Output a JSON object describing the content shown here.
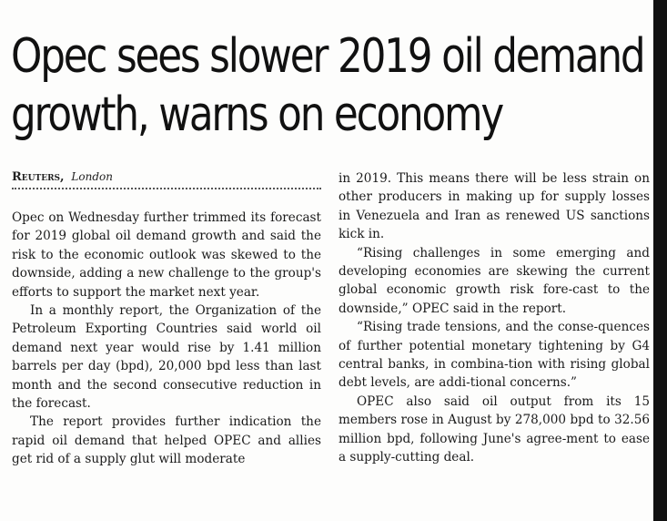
{
  "article": {
    "headline_line1": "Opec sees slower 2019 oil demand",
    "headline_line2": "growth, warns on economy",
    "agency": "Reuters,",
    "location": "London",
    "left_paragraphs": [
      "Opec on Wednesday further trimmed its forecast for 2019 global oil demand growth and said the risk to the economic outlook was skewed to the downside, adding a new challenge to the group's efforts to support the market next year.",
      "In a monthly report, the Organization of the Petroleum Exporting Countries said world oil demand next year would rise by 1.41 million barrels per day (bpd), 20,000 bpd less than last month and the second consecutive reduction in the forecast.",
      "The report provides further indication the rapid oil demand that helped OPEC and allies get rid of a supply glut will moderate"
    ],
    "right_paragraphs": [
      "in 2019. This means there will be less strain on other producers in making up for supply losses in Venezuela and Iran as renewed US sanctions kick in.",
      "“Rising challenges in some emerging and developing economies are skewing the current global economic growth risk fore-cast to the downside,” OPEC said in the report.",
      "“Rising trade tensions, and the conse-quences of further potential monetary tightening by G4 central banks, in combina-tion with rising global debt levels, are addi-tional concerns.”",
      "OPEC also said oil output from its 15 members rose in August by 278,000 bpd to 32.56 million bpd, following June's agree-ment to ease a supply-cutting deal."
    ]
  }
}
